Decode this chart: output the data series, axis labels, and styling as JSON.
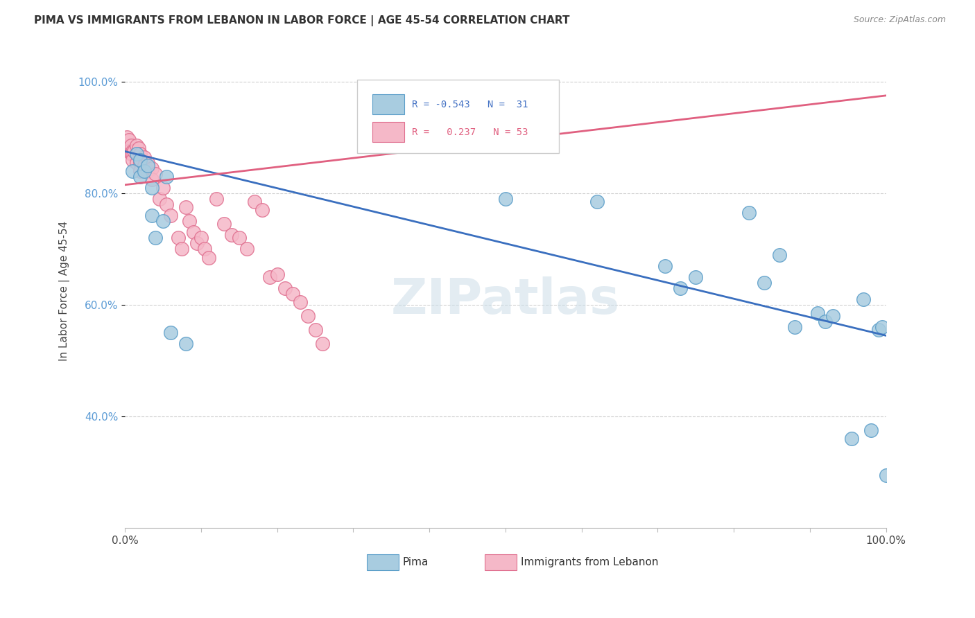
{
  "title": "PIMA VS IMMIGRANTS FROM LEBANON IN LABOR FORCE | AGE 45-54 CORRELATION CHART",
  "source": "Source: ZipAtlas.com",
  "ylabel": "In Labor Force | Age 45-54",
  "legend_blue_label": "Pima",
  "legend_pink_label": "Immigrants from Lebanon",
  "blue_color": "#a8cce0",
  "blue_edge": "#5b9ec9",
  "pink_color": "#f5b8c8",
  "pink_edge": "#e07090",
  "blue_line_color": "#3a6fbf",
  "pink_line_color": "#e06080",
  "watermark": "ZIPatlas",
  "bg_color": "#ffffff",
  "grid_color": "#d0d0d0",
  "pima_x": [
    1.0,
    1.5,
    2.0,
    2.0,
    2.5,
    3.0,
    3.5,
    3.5,
    4.0,
    5.0,
    5.5,
    6.0,
    8.0,
    50.0,
    62.0,
    71.0,
    73.0,
    75.0,
    82.0,
    84.0,
    86.0,
    88.0,
    91.0,
    92.0,
    93.0,
    95.5,
    97.0,
    98.0,
    99.0,
    99.5,
    100.0
  ],
  "pima_y": [
    0.84,
    0.87,
    0.86,
    0.83,
    0.84,
    0.85,
    0.81,
    0.76,
    0.72,
    0.75,
    0.83,
    0.55,
    0.53,
    0.79,
    0.785,
    0.67,
    0.63,
    0.65,
    0.765,
    0.64,
    0.69,
    0.56,
    0.585,
    0.57,
    0.58,
    0.36,
    0.61,
    0.375,
    0.555,
    0.56,
    0.295
  ],
  "leb_x": [
    0.3,
    0.4,
    0.5,
    0.5,
    0.6,
    0.8,
    0.8,
    1.0,
    1.0,
    1.0,
    1.2,
    1.5,
    1.5,
    1.5,
    1.8,
    2.0,
    2.0,
    2.0,
    2.5,
    2.5,
    3.0,
    3.0,
    3.5,
    3.5,
    4.0,
    4.5,
    5.0,
    5.5,
    6.0,
    7.0,
    7.5,
    8.0,
    8.5,
    9.0,
    9.5,
    10.0,
    10.5,
    11.0,
    12.0,
    13.0,
    14.0,
    15.0,
    16.0,
    17.0,
    18.0,
    19.0,
    20.0,
    21.0,
    22.0,
    23.0,
    24.0,
    25.0,
    26.0
  ],
  "leb_y": [
    0.9,
    0.88,
    0.895,
    0.875,
    0.875,
    0.885,
    0.87,
    0.875,
    0.87,
    0.86,
    0.875,
    0.885,
    0.87,
    0.855,
    0.88,
    0.87,
    0.855,
    0.84,
    0.865,
    0.85,
    0.855,
    0.84,
    0.845,
    0.825,
    0.835,
    0.79,
    0.81,
    0.78,
    0.76,
    0.72,
    0.7,
    0.775,
    0.75,
    0.73,
    0.71,
    0.72,
    0.7,
    0.685,
    0.79,
    0.745,
    0.725,
    0.72,
    0.7,
    0.785,
    0.77,
    0.65,
    0.655,
    0.63,
    0.62,
    0.605,
    0.58,
    0.555,
    0.53
  ],
  "xlim": [
    0,
    100
  ],
  "ylim": [
    0.2,
    1.05
  ],
  "yticks": [
    0.4,
    0.6,
    0.8,
    1.0
  ],
  "ytick_labels": [
    "40.0%",
    "60.0%",
    "80.0%",
    "100.0%"
  ]
}
